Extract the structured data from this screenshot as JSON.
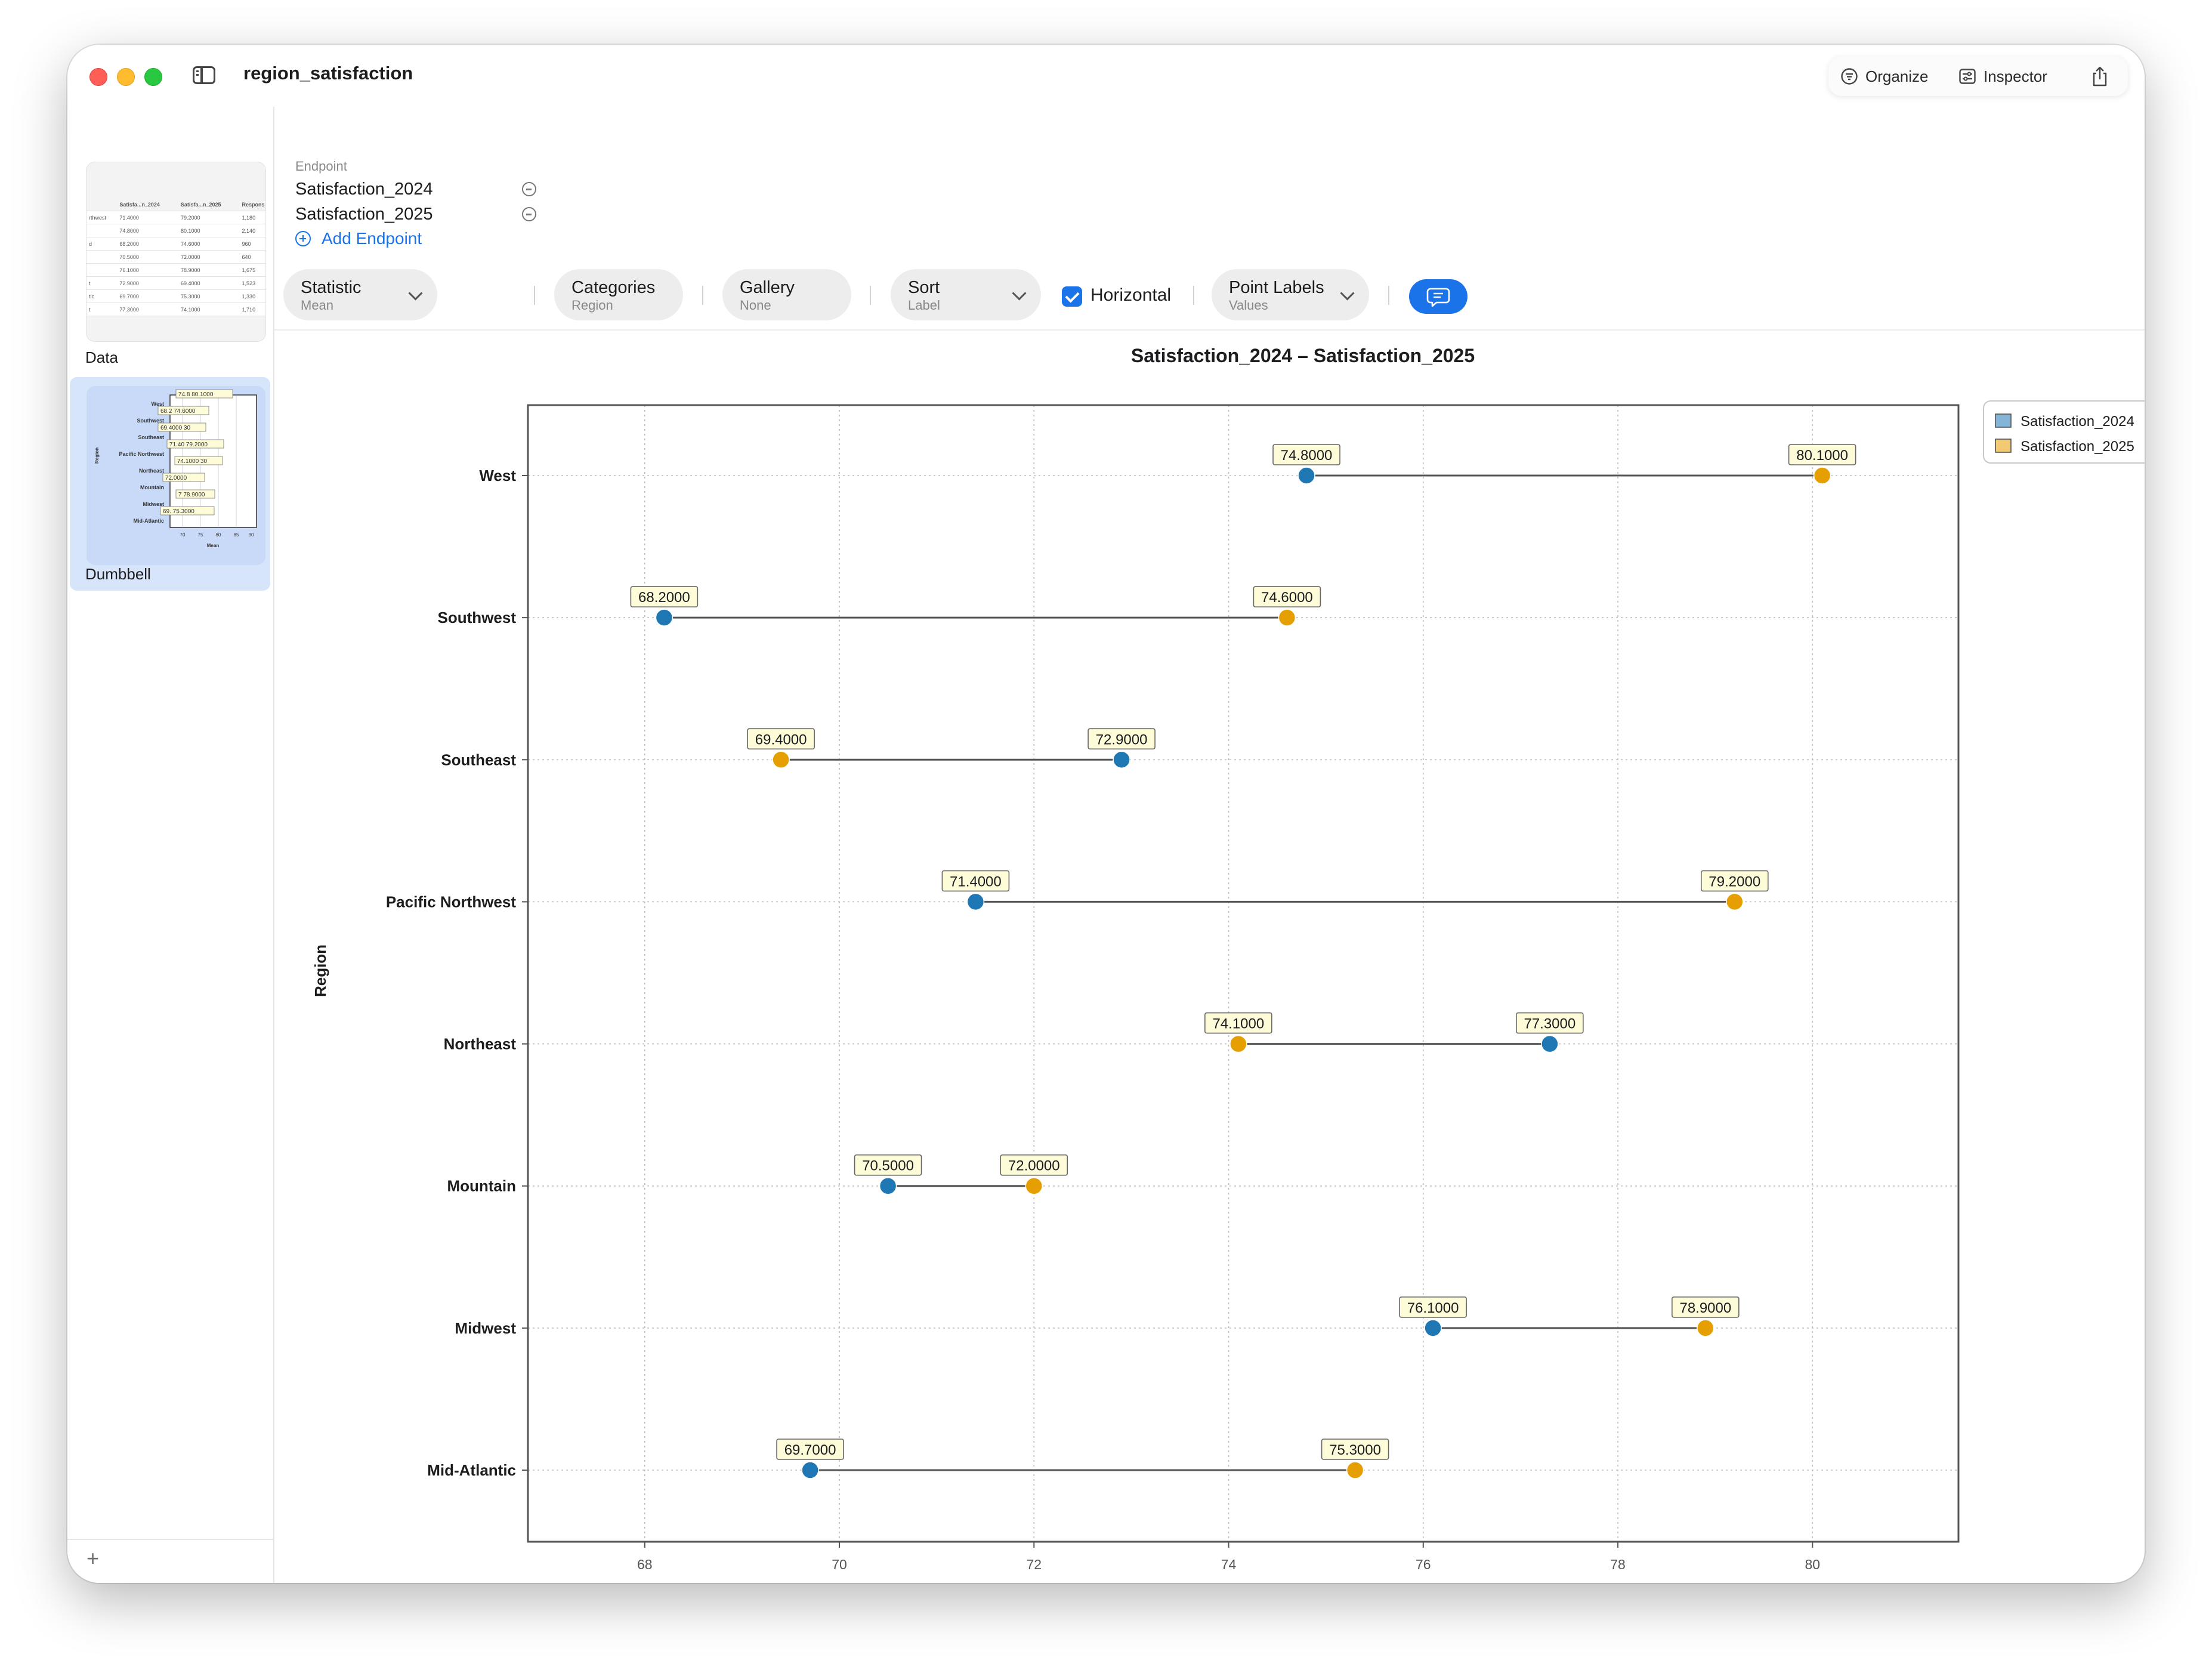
{
  "window": {
    "title": "region_satisfaction",
    "toolbar": {
      "organize_label": "Organize",
      "inspector_label": "Inspector"
    }
  },
  "sidebar": {
    "sheets": [
      {
        "label": "Data",
        "selected": false
      },
      {
        "label": "Dumbbell",
        "selected": true
      }
    ],
    "data_thumb": {
      "headers": [
        "",
        "Satisfa...n_2024",
        "Satisfa...n_2025",
        "Respons"
      ],
      "rows": [
        [
          "rthwest",
          "71.4000",
          "79.2000",
          "1,180"
        ],
        [
          "",
          "74.8000",
          "80.1000",
          "2,140"
        ],
        [
          "d",
          "68.2000",
          "74.6000",
          "960"
        ],
        [
          "",
          "70.5000",
          "72.0000",
          "640"
        ],
        [
          "",
          "76.1000",
          "78.9000",
          "1,675"
        ],
        [
          "t",
          "72.9000",
          "69.4000",
          "1,523"
        ],
        [
          "tic",
          "69.7000",
          "75.3000",
          "1,330"
        ],
        [
          "t",
          "77.3000",
          "74.1000",
          "1,710"
        ]
      ]
    }
  },
  "endpoints": {
    "caption": "Endpoint",
    "items": [
      "Satisfaction_2024",
      "Satisfaction_2025"
    ],
    "add_label": "Add Endpoint"
  },
  "controls": {
    "statistic": {
      "label": "Statistic",
      "value": "Mean"
    },
    "categories": {
      "label": "Categories",
      "value": "Region"
    },
    "gallery": {
      "label": "Gallery",
      "value": "None"
    },
    "sort": {
      "label": "Sort",
      "value": "Label"
    },
    "horizontal": {
      "label": "Horizontal",
      "checked": true
    },
    "point_labels": {
      "label": "Point Labels",
      "value": "Values"
    }
  },
  "chart_data": {
    "type": "dumbbell",
    "title": "Satisfaction_2024 – Satisfaction_2025",
    "xlabel": "Mean",
    "ylabel": "Region",
    "xlim": [
      66.8,
      81.5
    ],
    "xticks": [
      68,
      70,
      72,
      74,
      76,
      78,
      80
    ],
    "grid": true,
    "legend_position": "top-right",
    "categories": [
      "West",
      "Southwest",
      "Southeast",
      "Pacific Northwest",
      "Northeast",
      "Mountain",
      "Midwest",
      "Mid-Atlantic"
    ],
    "series": [
      {
        "name": "Satisfaction_2024",
        "color": "#1f77b4",
        "values": [
          74.8,
          68.2,
          72.9,
          71.4,
          77.3,
          70.5,
          76.1,
          69.7
        ]
      },
      {
        "name": "Satisfaction_2025",
        "color": "#e69f00",
        "values": [
          80.1,
          74.6,
          69.4,
          79.2,
          74.1,
          72.0,
          78.9,
          75.3
        ]
      }
    ],
    "point_labels": {
      "Satisfaction_2024": [
        "74.8000",
        "68.2000",
        "72.9000",
        "71.4000",
        "77.3000",
        "70.5000",
        "76.1000",
        "69.7000"
      ],
      "Satisfaction_2025": [
        "80.1000",
        "74.6000",
        "69.4000",
        "79.2000",
        "74.1000",
        "72.0000",
        "78.9000",
        "75.3000"
      ]
    }
  }
}
